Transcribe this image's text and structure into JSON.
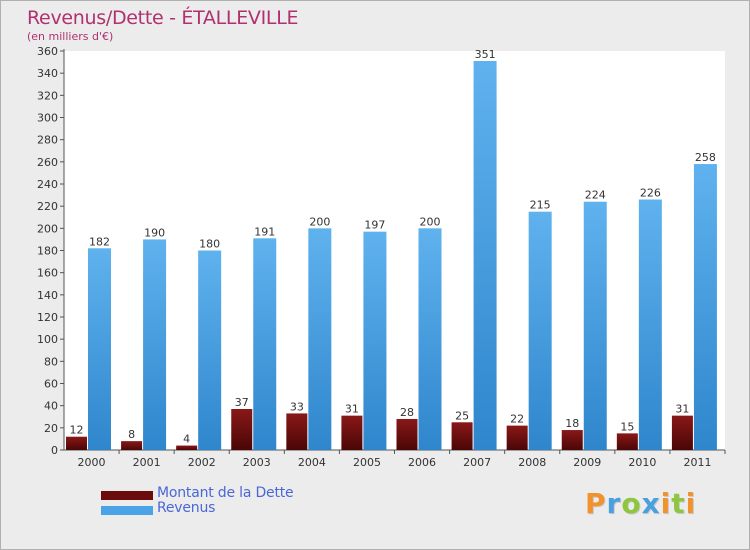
{
  "chart_data": {
    "type": "bar",
    "title": "Revenus/Dette - ÉTALLEVILLE",
    "subtitle": "(en milliers d'€)",
    "categories": [
      "2000",
      "2001",
      "2002",
      "2003",
      "2004",
      "2005",
      "2006",
      "2007",
      "2008",
      "2009",
      "2010",
      "2011"
    ],
    "series": [
      {
        "name": "Montant de la Dette",
        "color": "#6b0d0d",
        "values": [
          12,
          8,
          4,
          37,
          33,
          31,
          28,
          25,
          22,
          18,
          15,
          31
        ]
      },
      {
        "name": "Revenus",
        "color": "#4aa3e6",
        "values": [
          182,
          190,
          180,
          191,
          200,
          197,
          200,
          351,
          215,
          224,
          226,
          258
        ]
      }
    ],
    "ylim": [
      0,
      360
    ],
    "yticks": [
      0,
      20,
      40,
      60,
      80,
      100,
      120,
      140,
      160,
      180,
      200,
      220,
      240,
      260,
      280,
      300,
      320,
      340,
      360
    ],
    "grid": false,
    "data_labels": true,
    "legend_position": "bottom-left"
  },
  "logo": {
    "letters": [
      {
        "char": "P",
        "color": "#f0922e"
      },
      {
        "char": "r",
        "color": "#4a9fe0"
      },
      {
        "char": "o",
        "color": "#8dc63f"
      },
      {
        "char": "x",
        "color": "#4a9fe0"
      },
      {
        "char": "i",
        "color": "#f0922e"
      },
      {
        "char": "t",
        "color": "#8dc63f"
      },
      {
        "char": "i",
        "color": "#f0922e"
      }
    ]
  }
}
